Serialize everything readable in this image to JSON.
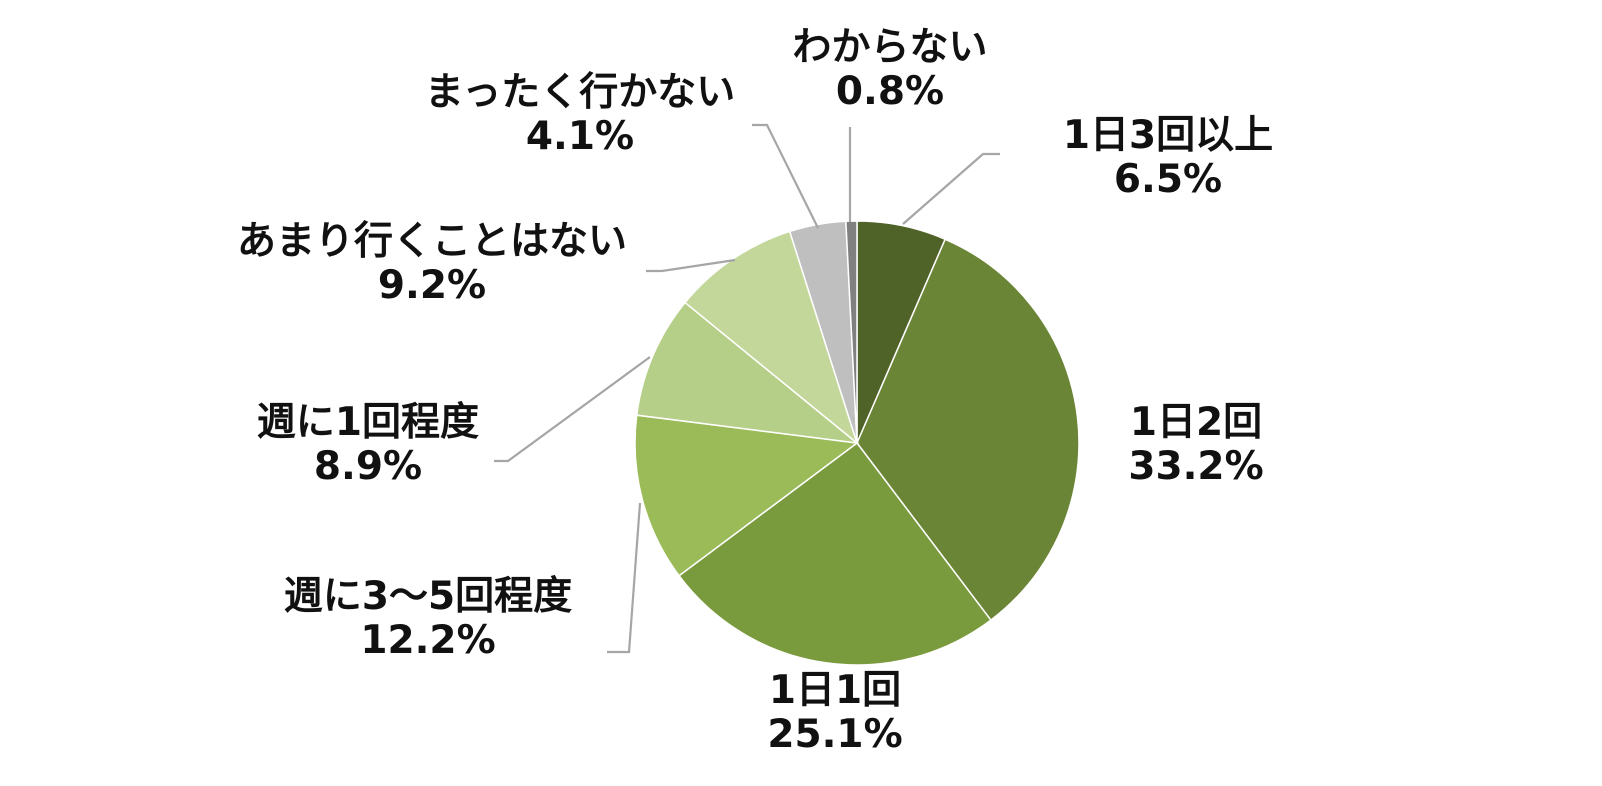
{
  "chart_data": {
    "type": "pie",
    "title": "",
    "start_angle_deg": 0,
    "direction": "clockwise",
    "slices": [
      {
        "label": "1日3回以上",
        "value": 6.5,
        "value_text": "6.5%",
        "color": "#4f6228"
      },
      {
        "label": "1日2回",
        "value": 33.2,
        "value_text": "33.2%",
        "color": "#6b8536"
      },
      {
        "label": "1日1回",
        "value": 25.1,
        "value_text": "25.1%",
        "color": "#7a9a3e"
      },
      {
        "label": "週に3〜5回程度",
        "value": 12.2,
        "value_text": "12.2%",
        "color": "#9bbb59"
      },
      {
        "label": "週に1回程度",
        "value": 8.9,
        "value_text": "8.9%",
        "color": "#b6cf88"
      },
      {
        "label": "あまり行くことはない",
        "value": 9.2,
        "value_text": "9.2%",
        "color": "#c4d79b"
      },
      {
        "label": "まったく行かない",
        "value": 4.1,
        "value_text": "4.1%",
        "color": "#bfbfbf"
      },
      {
        "label": "わからない",
        "value": 0.8,
        "value_text": "0.8%",
        "color": "#808080"
      }
    ],
    "legend": "none"
  }
}
